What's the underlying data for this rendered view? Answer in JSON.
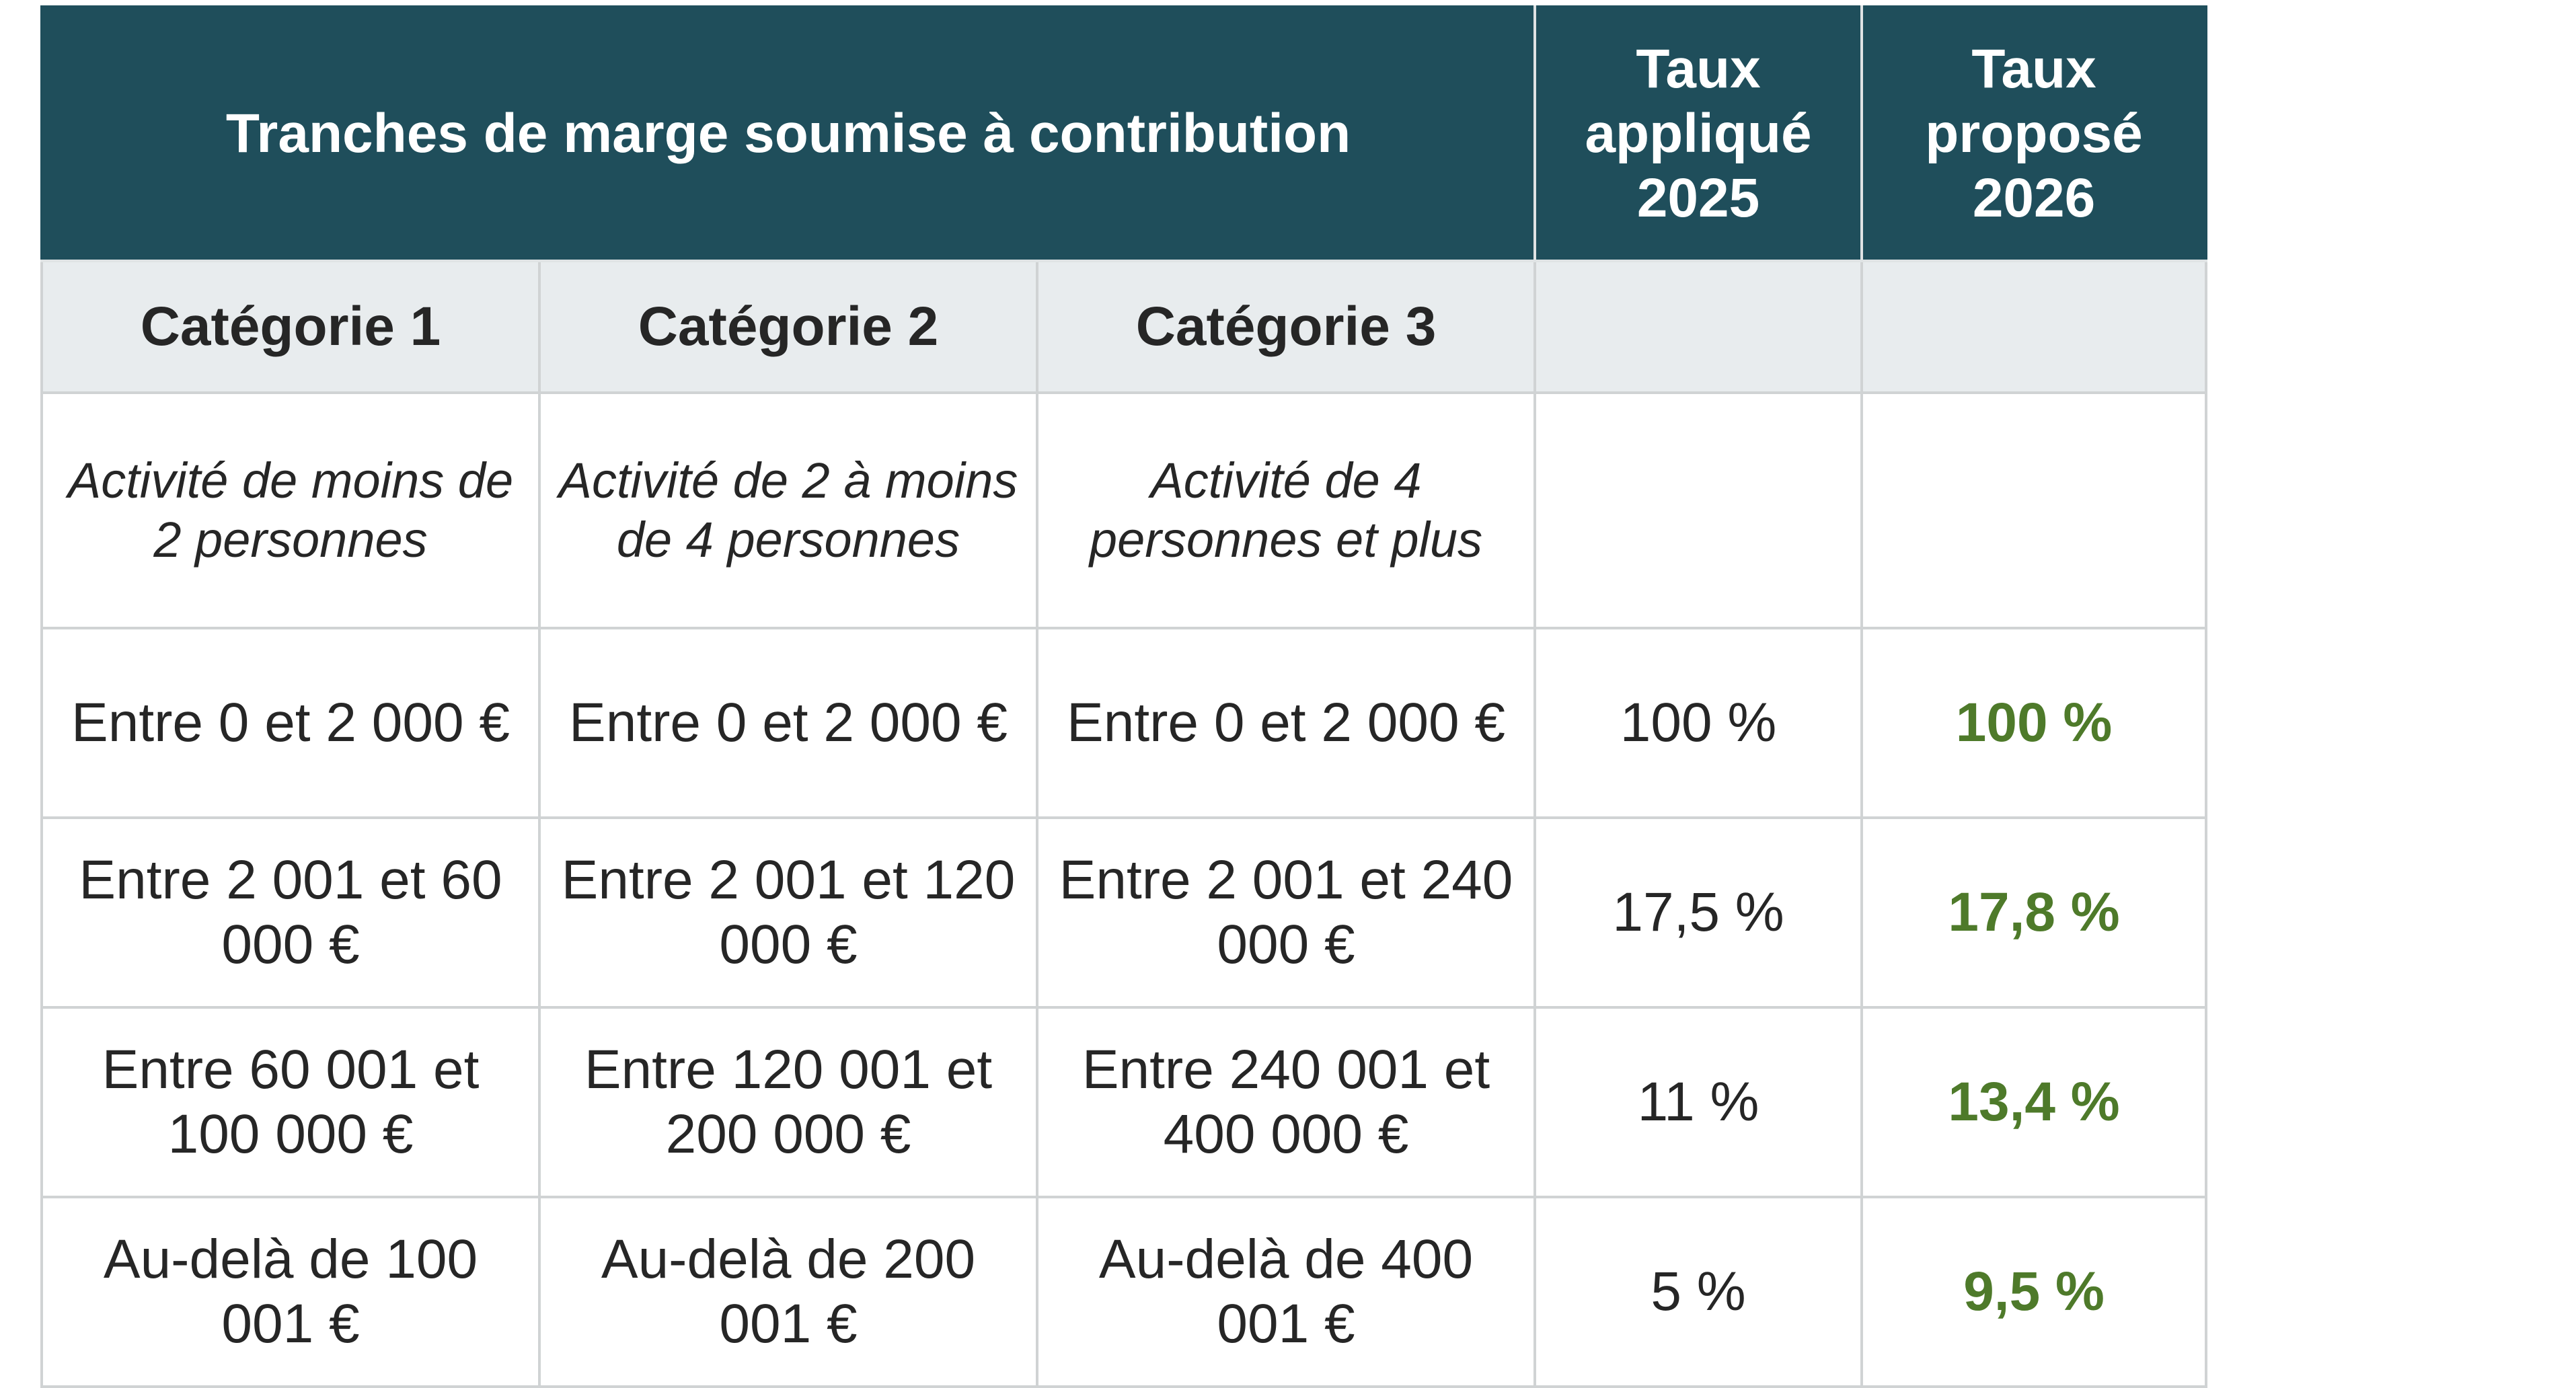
{
  "table": {
    "header": {
      "tranches": "Tranches de marge soumise à contribution",
      "taux_2025": "Taux appliqué 2025",
      "taux_2026": "Taux proposé 2026"
    },
    "categories": [
      "Catégorie 1",
      "Catégorie 2",
      "Catégorie 3"
    ],
    "descriptions": [
      "Activité de moins de 2 personnes",
      "Activité de 2 à moins de 4 personnes",
      "Activité de 4 personnes et plus"
    ],
    "rows": [
      {
        "cat1": "Entre 0 et 2 000 €",
        "cat2": "Entre 0 et 2 000 €",
        "cat3": "Entre 0 et 2 000 €",
        "taux_2025": "100 %",
        "taux_2026": "100 %"
      },
      {
        "cat1": "Entre 2 001 et 60 000 €",
        "cat2": "Entre 2 001 et 120 000 €",
        "cat3": "Entre 2 001 et 240 000 €",
        "taux_2025": "17,5 %",
        "taux_2026": "17,8 %"
      },
      {
        "cat1": "Entre 60 001 et 100 000 €",
        "cat2": "Entre 120 001 et 200 000 €",
        "cat3": "Entre 240 001 et 400 000 €",
        "taux_2025": "11 %",
        "taux_2026": "13,4 %"
      },
      {
        "cat1": "Au-delà de 100 001 €",
        "cat2": "Au-delà de 200 001 €",
        "cat3": "Au-delà de 400 001 €",
        "taux_2025": "5 %",
        "taux_2026": "9,5 %"
      }
    ],
    "colors": {
      "header_bg": "#1f4e5b",
      "category_bg": "#e8ecee",
      "proposed_text": "#4e7a2a"
    }
  }
}
